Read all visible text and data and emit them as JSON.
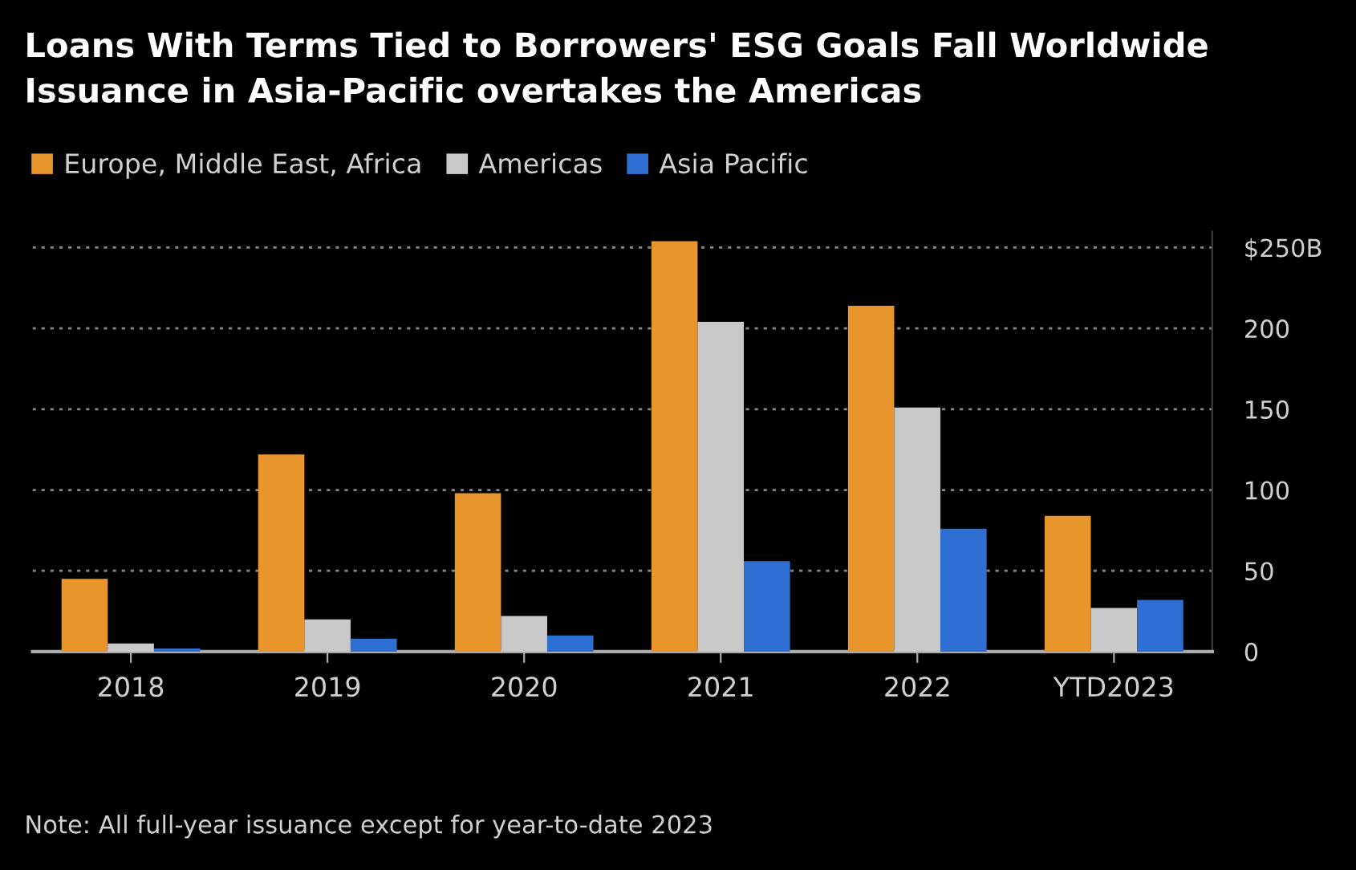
{
  "chart_data": {
    "type": "bar",
    "title": "Loans With Terms Tied to Borrowers' ESG Goals Fall Worldwide",
    "subtitle": "Issuance in Asia-Pacific overtakes the Americas",
    "categories": [
      "2018",
      "2019",
      "2020",
      "2021",
      "2022",
      "YTD2023"
    ],
    "series": [
      {
        "name": "Europe, Middle East, Africa",
        "color": "#e8952c",
        "values": [
          45,
          122,
          98,
          254,
          214,
          84
        ]
      },
      {
        "name": "Americas",
        "color": "#c8c8c8",
        "values": [
          5,
          20,
          22,
          204,
          151,
          27
        ]
      },
      {
        "name": "Asia Pacific",
        "color": "#2e6fd1",
        "values": [
          2,
          8,
          10,
          56,
          76,
          32
        ]
      }
    ],
    "ylim": [
      0,
      260
    ],
    "yticks": [
      0,
      50,
      100,
      150,
      200,
      {
        "value": 250,
        "label": "$250B"
      }
    ],
    "grid": "y",
    "legend": "top left",
    "annotations": [
      "Note: All full-year issuance except for year-to-date 2023"
    ]
  }
}
